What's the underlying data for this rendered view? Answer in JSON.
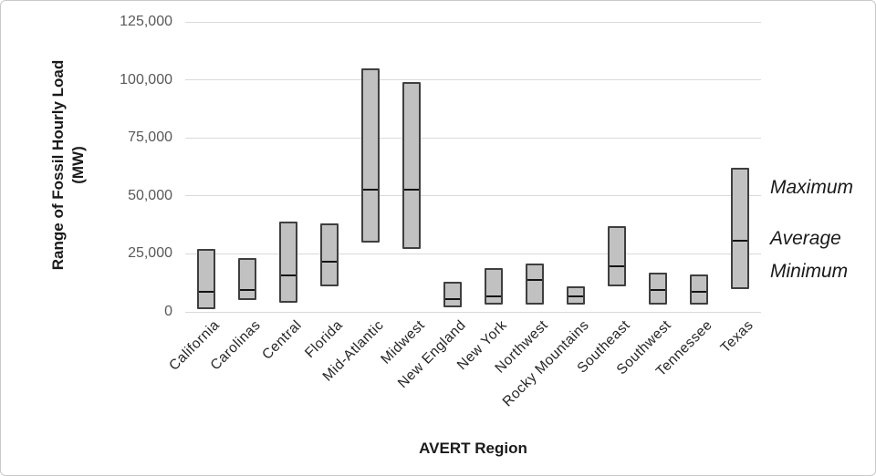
{
  "figure": {
    "y_axis_title_line1": "Range of Fossil Hourly Load",
    "y_axis_title_line2": "(MW)",
    "x_axis_title": "AVERT Region",
    "annotations": {
      "maximum": "Maximum",
      "average": "Average",
      "minimum": "Minimum"
    }
  },
  "chart_data": {
    "type": "bar",
    "subtype": "floating-range-bar",
    "title": "",
    "xlabel": "AVERT Region",
    "ylabel": "Range of Fossil Hourly Load (MW)",
    "ylim": [
      0,
      125000
    ],
    "ytick_step": 25000,
    "yticks": [
      0,
      25000,
      50000,
      75000,
      100000,
      125000
    ],
    "ytick_labels": [
      "0",
      "25,000",
      "50,000",
      "75,000",
      "100,000",
      "125,000"
    ],
    "grid": true,
    "legend_position": "right-annotations",
    "categories": [
      "California",
      "Carolinas",
      "Central",
      "Florida",
      "Mid-Atlantic",
      "Midwest",
      "New England",
      "New York",
      "Northwest",
      "Rocky Mountains",
      "Southeast",
      "Southwest",
      "Tennessee",
      "Texas"
    ],
    "series": [
      {
        "name": "Minimum",
        "values": [
          1000,
          5000,
          4000,
          11000,
          30000,
          27000,
          2000,
          3000,
          3000,
          3000,
          11000,
          3000,
          3000,
          10000
        ]
      },
      {
        "name": "Average",
        "values": [
          9000,
          10000,
          16000,
          22000,
          53000,
          53000,
          6000,
          7000,
          14000,
          7000,
          20000,
          10000,
          9000,
          31000
        ]
      },
      {
        "name": "Maximum",
        "values": [
          27000,
          23000,
          39000,
          38000,
          105000,
          99000,
          13000,
          19000,
          21000,
          11000,
          37000,
          17000,
          16000,
          62000
        ]
      }
    ],
    "colors": {
      "bar_fill": "#c1c1c1",
      "bar_border": "#3f3f3f",
      "average_line": "#141414",
      "gridline": "#d9d9d9",
      "tick_label": "#595959",
      "text": "#1a1a1a"
    }
  }
}
